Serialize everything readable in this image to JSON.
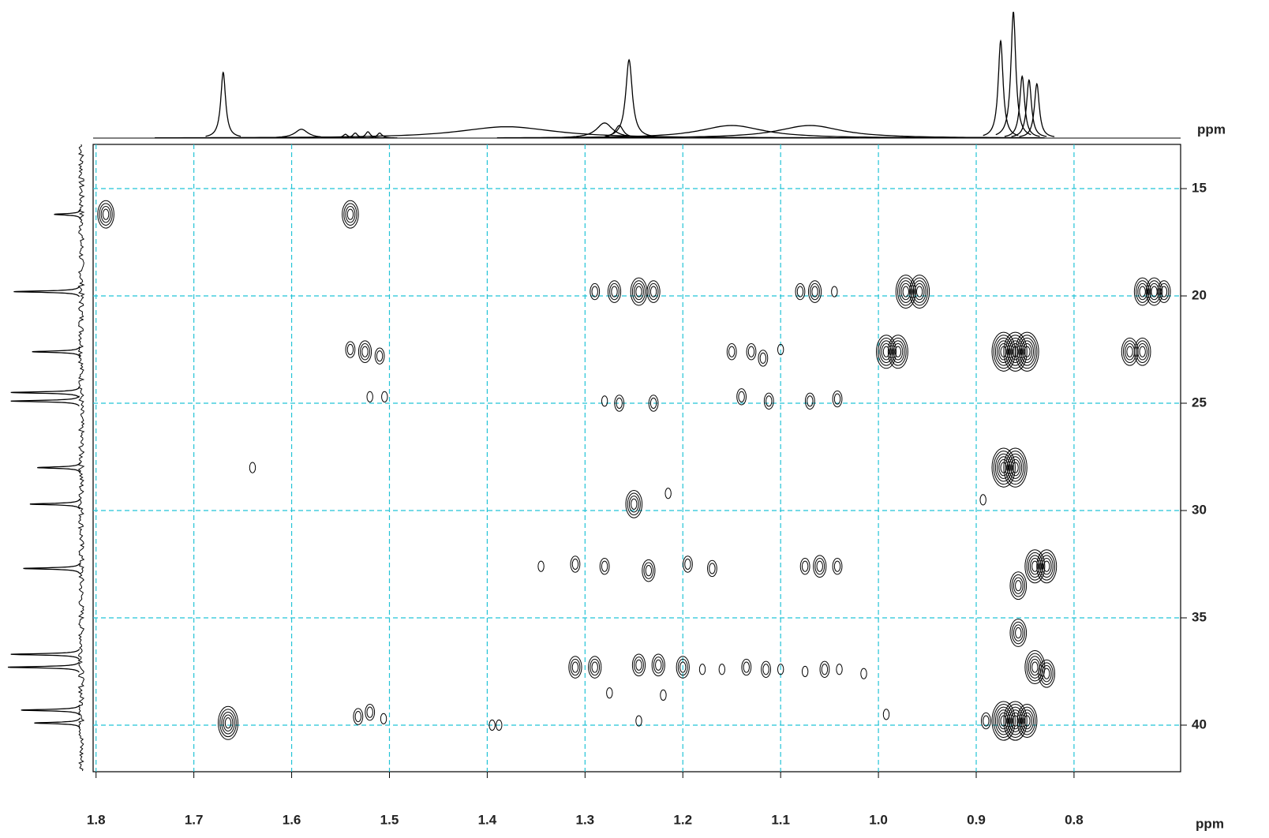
{
  "chart_data": {
    "type": "contour",
    "x_label": "ppm",
    "y_label": "ppm",
    "xlim": [
      1.803,
      0.691
    ],
    "ylim": [
      12.94,
      42.17
    ],
    "xticks": [
      1.8,
      1.7,
      1.6,
      1.5,
      1.4,
      1.3,
      1.2,
      1.1,
      {
        "value": 1,
        "label": "1.0"
      },
      0.9,
      0.8
    ],
    "yticks": [
      15,
      20,
      25,
      30,
      35,
      40
    ],
    "grid": true,
    "grid_color": "#22c3d6",
    "color": "#000000",
    "peaks": {
      "x": [
        1.79,
        1.54,
        1.29,
        1.27,
        1.245,
        1.23,
        1.08,
        1.065,
        1.045,
        0.972,
        0.958,
        0.73,
        0.718,
        0.708,
        1.54,
        1.525,
        1.51,
        1.15,
        1.13,
        1.118,
        1.1,
        0.992,
        0.98,
        0.872,
        0.86,
        0.848,
        0.743,
        0.73,
        1.52,
        1.505,
        1.28,
        1.265,
        1.23,
        1.14,
        1.112,
        1.07,
        1.042,
        1.64,
        0.872,
        0.86,
        1.25,
        1.215,
        0.893,
        1.345,
        1.31,
        1.28,
        1.235,
        1.195,
        1.17,
        1.075,
        1.06,
        1.042,
        0.84,
        0.828,
        0.857,
        0.857,
        1.31,
        1.29,
        1.245,
        1.225,
        1.2,
        1.18,
        1.16,
        1.135,
        1.115,
        1.1,
        1.075,
        1.055,
        1.04,
        1.015,
        0.84,
        0.828,
        1.665,
        1.532,
        1.52,
        1.506,
        1.395,
        1.388,
        1.275,
        1.245,
        1.22,
        0.992,
        0.89,
        0.872,
        0.86,
        0.848
      ],
      "y": [
        16.2,
        16.2,
        19.8,
        19.8,
        19.8,
        19.8,
        19.8,
        19.8,
        19.8,
        19.8,
        19.8,
        19.8,
        19.8,
        19.8,
        22.5,
        22.6,
        22.8,
        22.6,
        22.6,
        22.9,
        22.5,
        22.6,
        22.6,
        22.6,
        22.6,
        22.6,
        22.6,
        22.6,
        24.7,
        24.7,
        24.9,
        25.0,
        25.0,
        24.7,
        24.9,
        24.9,
        24.8,
        28.0,
        28.0,
        28.0,
        29.7,
        29.2,
        29.5,
        32.6,
        32.5,
        32.6,
        32.8,
        32.5,
        32.7,
        32.6,
        32.6,
        32.6,
        32.6,
        32.6,
        33.5,
        35.7,
        37.3,
        37.3,
        37.2,
        37.2,
        37.3,
        37.4,
        37.4,
        37.3,
        37.4,
        37.4,
        37.5,
        37.4,
        37.4,
        37.6,
        37.3,
        37.6,
        39.9,
        39.6,
        39.4,
        39.7,
        40.0,
        40.0,
        38.5,
        39.8,
        38.6,
        39.5,
        39.8,
        39.8,
        39.8,
        39.8
      ],
      "intensity": [
        4,
        4,
        2,
        3,
        4,
        3,
        2,
        3,
        1,
        5,
        5,
        4,
        4,
        3,
        2,
        3,
        2,
        2,
        2,
        2,
        1,
        5,
        5,
        6,
        6,
        6,
        4,
        4,
        1,
        1,
        1,
        2,
        2,
        2,
        2,
        2,
        2,
        1,
        6,
        6,
        4,
        1,
        1,
        1,
        2,
        2,
        3,
        2,
        2,
        2,
        3,
        2,
        5,
        5,
        4,
        4,
        3,
        3,
        3,
        3,
        3,
        1,
        1,
        2,
        2,
        1,
        1,
        2,
        1,
        1,
        5,
        4,
        5,
        2,
        2,
        1,
        1,
        1,
        1,
        1,
        1,
        1,
        2,
        6,
        6,
        5
      ]
    },
    "top_projection": {
      "x": [
        1.67,
        1.59,
        1.545,
        1.535,
        1.522,
        1.51,
        1.38,
        1.28,
        1.265,
        1.255,
        1.15,
        1.07,
        0.875,
        0.862,
        0.853,
        0.846,
        0.838
      ],
      "height": [
        0.52,
        0.07,
        0.03,
        0.04,
        0.05,
        0.04,
        0.09,
        0.12,
        0.1,
        0.62,
        0.1,
        0.1,
        0.77,
        1.0,
        0.49,
        0.46,
        0.43
      ],
      "width": [
        0.003,
        0.008,
        0.003,
        0.003,
        0.003,
        0.003,
        0.06,
        0.01,
        0.005,
        0.004,
        0.04,
        0.04,
        0.003,
        0.003,
        0.003,
        0.003,
        0.003
      ]
    },
    "left_projection": {
      "y": [
        16.2,
        19.8,
        22.6,
        24.5,
        24.9,
        28.0,
        29.7,
        32.7,
        36.7,
        37.3,
        39.3,
        39.9
      ],
      "height": [
        0.37,
        0.92,
        0.67,
        0.96,
        0.96,
        0.6,
        0.7,
        0.79,
        0.96,
        1.0,
        0.82,
        0.64
      ],
      "width": [
        0.04,
        0.04,
        0.04,
        0.04,
        0.04,
        0.04,
        0.04,
        0.04,
        0.04,
        0.04,
        0.04,
        0.04
      ]
    }
  }
}
